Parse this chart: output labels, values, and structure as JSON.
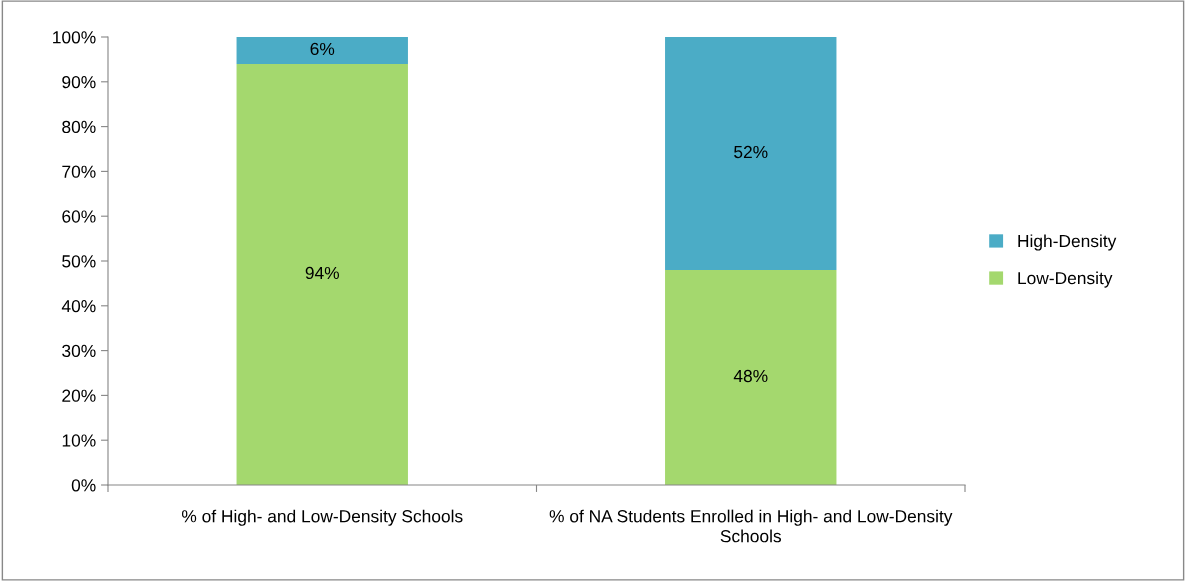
{
  "chart_data": {
    "type": "bar",
    "stacked": true,
    "categories": [
      "% of High- and Low-Density Schools",
      "% of NA Students Enrolled in High- and Low-Density Schools"
    ],
    "series": [
      {
        "name": "Low-Density",
        "color": "#a4d86e",
        "values": [
          94,
          48
        ],
        "value_labels": [
          "94%",
          "48%"
        ]
      },
      {
        "name": "High-Density",
        "color": "#4bacc6",
        "values": [
          6,
          52
        ],
        "value_labels": [
          "6%",
          "52%"
        ]
      }
    ],
    "ylim": [
      0,
      100
    ],
    "yticks": [
      {
        "value": 0,
        "label": "0%"
      },
      {
        "value": 10,
        "label": "10%"
      },
      {
        "value": 20,
        "label": "20%"
      },
      {
        "value": 30,
        "label": "30%"
      },
      {
        "value": 40,
        "label": "40%"
      },
      {
        "value": 50,
        "label": "50%"
      },
      {
        "value": 60,
        "label": "60%"
      },
      {
        "value": 70,
        "label": "70%"
      },
      {
        "value": 80,
        "label": "80%"
      },
      {
        "value": 90,
        "label": "90%"
      },
      {
        "value": 100,
        "label": "100%"
      }
    ],
    "grid": false,
    "legend": "right"
  }
}
